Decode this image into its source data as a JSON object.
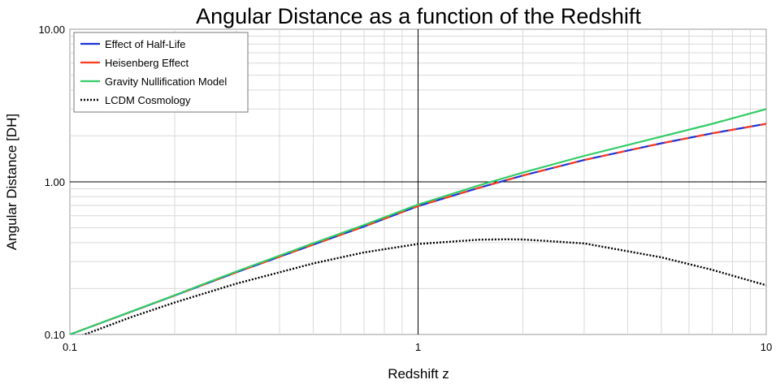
{
  "chart_data": {
    "type": "line",
    "title": "Angular Distance as a function of the Redshift",
    "xlabel": "Redshift  z",
    "ylabel": "Angular Distance [DH]",
    "x_scale": "log",
    "y_scale": "log",
    "xlim": [
      0.1,
      10
    ],
    "ylim": [
      0.1,
      10
    ],
    "x_ticks": [
      {
        "value": 0.1,
        "label": "0.1"
      },
      {
        "value": 1,
        "label": "1"
      },
      {
        "value": 10,
        "label": "10"
      }
    ],
    "y_ticks": [
      {
        "value": 0.1,
        "label": "0.10"
      },
      {
        "value": 1,
        "label": "1.00"
      },
      {
        "value": 10,
        "label": "10.00"
      }
    ],
    "grid": true,
    "legend_position": "top-left",
    "series": [
      {
        "name": "Effect of Half-Life",
        "color": "#1f33d6",
        "style": "solid",
        "x": [
          0.1,
          0.2,
          0.3,
          0.5,
          0.7,
          1,
          1.5,
          2,
          3,
          5,
          7,
          10
        ],
        "y": [
          0.1,
          0.18,
          0.255,
          0.388,
          0.51,
          0.693,
          0.916,
          1.1,
          1.39,
          1.79,
          2.08,
          2.4
        ]
      },
      {
        "name": "Heisenberg Effect",
        "color": "#ff3b1a",
        "style": "dashed",
        "x": [
          0.1,
          0.2,
          0.3,
          0.5,
          0.7,
          1,
          1.5,
          2,
          3,
          5,
          7,
          10
        ],
        "y": [
          0.1,
          0.18,
          0.255,
          0.388,
          0.51,
          0.693,
          0.916,
          1.1,
          1.39,
          1.79,
          2.08,
          2.4
        ]
      },
      {
        "name": "Gravity Nullification Model",
        "color": "#33cc66",
        "style": "solid",
        "x": [
          0.1,
          0.2,
          0.3,
          0.5,
          0.7,
          1,
          1.5,
          2,
          3,
          5,
          7,
          10
        ],
        "y": [
          0.1,
          0.181,
          0.258,
          0.396,
          0.522,
          0.71,
          0.95,
          1.15,
          1.48,
          1.98,
          2.4,
          3.0
        ]
      },
      {
        "name": "LCDM Cosmology",
        "color": "#000000",
        "style": "dotted",
        "x": [
          0.1,
          0.15,
          0.2,
          0.3,
          0.5,
          0.7,
          1,
          1.5,
          1.8,
          2,
          3,
          5,
          7,
          10
        ],
        "y": [
          0.092,
          0.13,
          0.162,
          0.215,
          0.292,
          0.345,
          0.392,
          0.418,
          0.42,
          0.419,
          0.395,
          0.32,
          0.265,
          0.21
        ]
      }
    ]
  }
}
